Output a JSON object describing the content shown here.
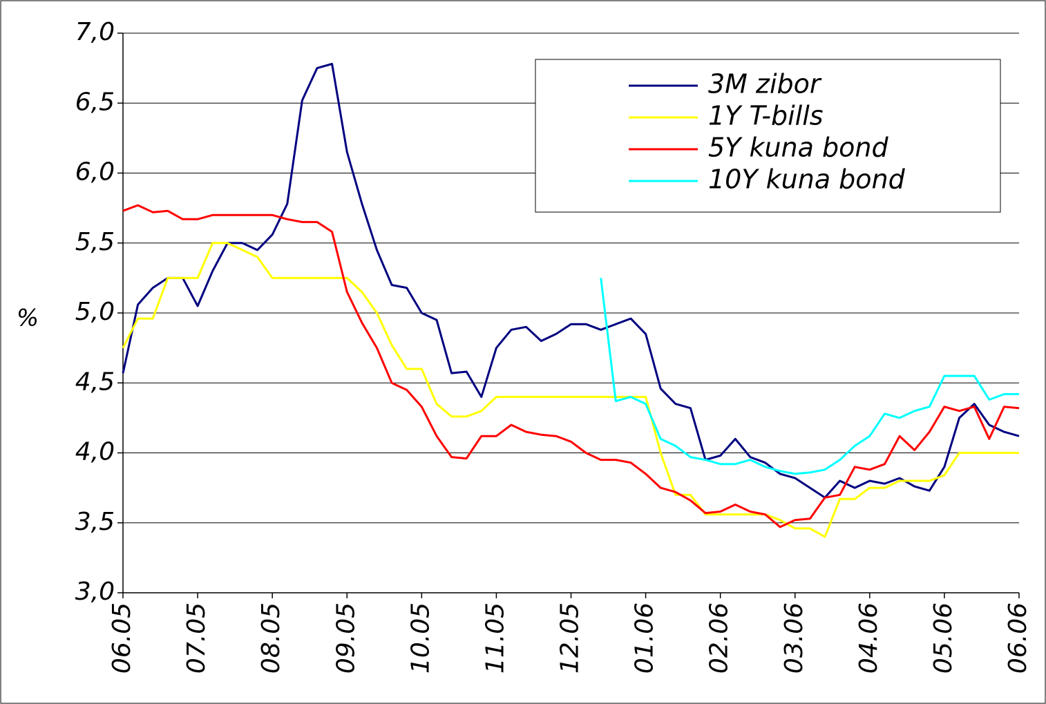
{
  "chart_data": {
    "type": "line",
    "ylabel": "%",
    "x": [
      0,
      0.2,
      0.4,
      0.6,
      0.8,
      1,
      1.2,
      1.4,
      1.6,
      1.8,
      2,
      2.2,
      2.4,
      2.6,
      2.8,
      3,
      3.2,
      3.4,
      3.6,
      3.8,
      4,
      4.2,
      4.4,
      4.6,
      4.8,
      5,
      5.2,
      5.4,
      5.6,
      5.8,
      6,
      6.2,
      6.4,
      6.6,
      6.8,
      7,
      7.2,
      7.4,
      7.6,
      7.8,
      8,
      8.2,
      8.4,
      8.6,
      8.8,
      9,
      9.2,
      9.4,
      9.6,
      9.8,
      10,
      10.2,
      10.4,
      10.6,
      10.8,
      11,
      11.2,
      11.4,
      11.6,
      11.8,
      12
    ],
    "xlim": [
      0,
      12
    ],
    "xticks": [
      {
        "value": 0,
        "label": "06.05"
      },
      {
        "value": 1,
        "label": "07.05"
      },
      {
        "value": 2,
        "label": "08.05"
      },
      {
        "value": 3,
        "label": "09.05"
      },
      {
        "value": 4,
        "label": "10.05"
      },
      {
        "value": 5,
        "label": "11.05"
      },
      {
        "value": 6,
        "label": "12.05"
      },
      {
        "value": 7,
        "label": "01.06"
      },
      {
        "value": 8,
        "label": "02.06"
      },
      {
        "value": 9,
        "label": "03.06"
      },
      {
        "value": 10,
        "label": "04.06"
      },
      {
        "value": 11,
        "label": "05.06"
      },
      {
        "value": 12,
        "label": "06.06"
      }
    ],
    "ylim": [
      3,
      7
    ],
    "yticks": [
      {
        "value": 3,
        "label": "3,0"
      },
      {
        "value": 3.5,
        "label": "3,5"
      },
      {
        "value": 4,
        "label": "4,0"
      },
      {
        "value": 4.5,
        "label": "4,5"
      },
      {
        "value": 5,
        "label": "5,0"
      },
      {
        "value": 5.5,
        "label": "5,5"
      },
      {
        "value": 6,
        "label": "6,0"
      },
      {
        "value": 6.5,
        "label": "6,5"
      },
      {
        "value": 7,
        "label": "7,0"
      }
    ],
    "grid": true,
    "legend": "upper right",
    "series": [
      {
        "name": "3M zibor",
        "color": "#000080",
        "values": [
          4.57,
          5.06,
          5.18,
          5.25,
          5.25,
          5.05,
          5.3,
          5.5,
          5.5,
          5.45,
          5.56,
          5.78,
          6.52,
          6.75,
          6.78,
          6.15,
          5.78,
          5.45,
          5.2,
          5.18,
          5.0,
          4.95,
          4.57,
          4.58,
          4.4,
          4.75,
          4.88,
          4.9,
          4.8,
          4.85,
          4.92,
          4.92,
          4.88,
          4.92,
          4.96,
          4.85,
          4.46,
          4.35,
          4.32,
          3.95,
          3.98,
          4.1,
          3.97,
          3.93,
          3.85,
          3.82,
          3.75,
          3.68,
          3.8,
          3.75,
          3.8,
          3.78,
          3.82,
          3.76,
          3.73,
          3.9,
          4.25,
          4.35,
          4.2,
          4.15,
          4.12
        ]
      },
      {
        "name": "1Y T-bills",
        "color": "#ffff00",
        "values": [
          4.75,
          4.96,
          4.96,
          5.25,
          5.25,
          5.25,
          5.5,
          5.5,
          5.45,
          5.4,
          5.25,
          5.25,
          5.25,
          5.25,
          5.25,
          5.25,
          5.15,
          5.0,
          4.77,
          4.6,
          4.6,
          4.35,
          4.26,
          4.26,
          4.3,
          4.4,
          4.4,
          4.4,
          4.4,
          4.4,
          4.4,
          4.4,
          4.4,
          4.4,
          4.4,
          4.4,
          4.0,
          3.7,
          3.7,
          3.56,
          3.56,
          3.56,
          3.56,
          3.56,
          3.52,
          3.46,
          3.46,
          3.4,
          3.67,
          3.67,
          3.75,
          3.75,
          3.8,
          3.8,
          3.8,
          3.84,
          4.0,
          4.0,
          4.0,
          4.0,
          4.0
        ]
      },
      {
        "name": "5Y kuna bond",
        "color": "#ff0000",
        "values": [
          5.73,
          5.77,
          5.72,
          5.73,
          5.67,
          5.67,
          5.7,
          5.7,
          5.7,
          5.7,
          5.7,
          5.67,
          5.65,
          5.65,
          5.58,
          5.15,
          4.93,
          4.75,
          4.5,
          4.45,
          4.33,
          4.12,
          3.97,
          3.96,
          4.12,
          4.12,
          4.2,
          4.15,
          4.13,
          4.12,
          4.08,
          4.0,
          3.95,
          3.95,
          3.93,
          3.85,
          3.75,
          3.72,
          3.66,
          3.57,
          3.58,
          3.63,
          3.58,
          3.56,
          3.47,
          3.52,
          3.53,
          3.68,
          3.7,
          3.9,
          3.88,
          3.92,
          4.12,
          4.02,
          4.15,
          4.33,
          4.3,
          4.33,
          4.1,
          4.33,
          4.32
        ]
      },
      {
        "name": "10Y kuna bond",
        "color": "#00ffff",
        "values": [
          null,
          null,
          null,
          null,
          null,
          null,
          null,
          null,
          null,
          null,
          null,
          null,
          null,
          null,
          null,
          null,
          null,
          null,
          null,
          null,
          null,
          null,
          null,
          null,
          null,
          null,
          null,
          null,
          null,
          null,
          null,
          null,
          5.25,
          4.37,
          4.4,
          4.35,
          4.1,
          4.05,
          3.97,
          3.95,
          3.92,
          3.92,
          3.95,
          3.9,
          3.87,
          3.85,
          3.86,
          3.88,
          3.95,
          4.05,
          4.12,
          4.28,
          4.25,
          4.3,
          4.33,
          4.55,
          4.55,
          4.55,
          4.38,
          4.42,
          4.42
        ]
      }
    ]
  }
}
